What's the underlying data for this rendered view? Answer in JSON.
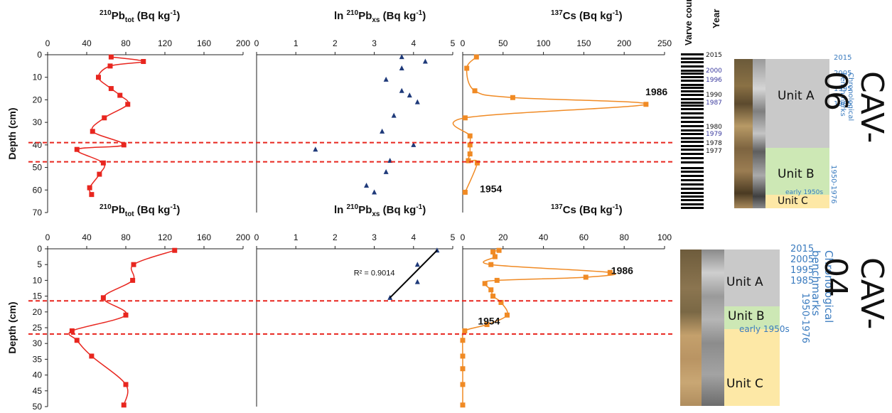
{
  "chart_data": [
    {
      "type": "scatter",
      "core": "CAV-06",
      "panel": "pb_tot",
      "title_sup": "210",
      "title_base": "Pb",
      "title_sub": "tot",
      "title_unit": " (Bq kg-1)",
      "ylabel": "Depth (cm)",
      "xlim": [
        0,
        200
      ],
      "xticks": [
        0,
        40,
        80,
        120,
        160,
        200
      ],
      "ylim": [
        0,
        70
      ],
      "yticks": [
        0,
        10,
        20,
        30,
        40,
        50,
        60,
        70
      ],
      "color": "#e8261f",
      "x": [
        65,
        98,
        64,
        52,
        65,
        74,
        82,
        58,
        46,
        78,
        30,
        57,
        53,
        43,
        45
      ],
      "y": [
        1,
        3,
        5,
        10,
        15,
        18,
        22,
        28,
        34,
        40,
        42,
        48,
        53,
        59,
        62
      ]
    },
    {
      "type": "scatter",
      "core": "CAV-06",
      "panel": "ln_pbxs",
      "title_prefix": "ln ",
      "title_sup": "210",
      "title_base": "Pb",
      "title_sub": "xs",
      "title_unit": " (Bq kg-1)",
      "xlim": [
        0,
        5
      ],
      "xticks": [
        0,
        1,
        2,
        3,
        4,
        5
      ],
      "ylim": [
        0,
        70
      ],
      "color": "#1f3a7a",
      "x": [
        3.7,
        4.3,
        3.7,
        3.3,
        3.7,
        3.9,
        4.1,
        3.5,
        3.2,
        4.0,
        1.5,
        3.4,
        3.3,
        2.8,
        3.0
      ],
      "y": [
        1,
        3,
        6,
        11,
        16,
        18,
        21,
        27,
        34,
        40,
        42,
        47,
        52,
        58,
        61
      ]
    },
    {
      "type": "line",
      "core": "CAV-06",
      "panel": "cs137",
      "title_sup": "137",
      "title_base": "Cs",
      "title_unit": " (Bq kg-1)",
      "xlim": [
        0,
        250
      ],
      "xticks": [
        0,
        50,
        100,
        150,
        200,
        250
      ],
      "ylim": [
        0,
        70
      ],
      "color": "#f08a24",
      "x": [
        17,
        5,
        15,
        62,
        227,
        3,
        9,
        9,
        9,
        7,
        18,
        3
      ],
      "y": [
        1,
        6,
        16,
        19,
        22,
        28,
        36,
        40,
        44,
        47,
        48,
        61
      ],
      "annotations": [
        {
          "text": "1986",
          "x": 240,
          "y": 18
        },
        {
          "text": "1954",
          "x": 35,
          "y": 61
        }
      ]
    },
    {
      "type": "scatter",
      "core": "CAV-04",
      "panel": "pb_tot",
      "title_sup": "210",
      "title_base": "Pb",
      "title_sub": "tot",
      "title_unit": " (Bq kg-1)",
      "ylabel": "Depth (cm)",
      "xlim": [
        0,
        200
      ],
      "xticks": [
        0,
        40,
        80,
        120,
        160,
        200
      ],
      "ylim": [
        0,
        50
      ],
      "yticks": [
        0,
        5,
        10,
        15,
        20,
        25,
        30,
        35,
        40,
        45,
        50
      ],
      "color": "#e8261f",
      "x": [
        130,
        88,
        87,
        57,
        80,
        25,
        30,
        45,
        80,
        78
      ],
      "y": [
        0.5,
        5,
        10,
        15.5,
        21,
        26,
        29,
        34,
        43,
        49.5
      ],
      "annotations": []
    },
    {
      "type": "scatter",
      "core": "CAV-04",
      "panel": "ln_pbxs",
      "title_prefix": "ln ",
      "title_sup": "210",
      "title_base": "Pb",
      "title_sub": "xs",
      "title_unit": " (Bq kg-1)",
      "xlim": [
        0,
        5
      ],
      "xticks": [
        0,
        1,
        2,
        3,
        4,
        5
      ],
      "ylim": [
        0,
        50
      ],
      "color": "#1f3a7a",
      "x": [
        4.6,
        4.1,
        4.1,
        3.4
      ],
      "y": [
        0.5,
        5,
        10.5,
        15.5
      ],
      "trendline": {
        "x": [
          4.6,
          3.4
        ],
        "y": [
          0.5,
          15.5
        ]
      },
      "annotations": [
        {
          "text": "R² = 0.9014",
          "x": 3.0,
          "y": 8.5
        }
      ]
    },
    {
      "type": "line",
      "core": "CAV-04",
      "panel": "cs137",
      "title_sup": "137",
      "title_base": "Cs",
      "title_unit": " (Bq kg-1)",
      "xlim": [
        0,
        100
      ],
      "xticks": [
        0,
        20,
        40,
        60,
        80,
        100
      ],
      "ylim": [
        0,
        50
      ],
      "color": "#f08a24",
      "x": [
        18,
        15,
        16,
        14,
        73,
        61,
        17,
        11,
        14,
        15,
        19,
        22,
        12,
        1,
        0,
        0,
        0,
        0,
        0
      ],
      "y": [
        0.5,
        1,
        2.5,
        5,
        7.5,
        9,
        10,
        11,
        13,
        15,
        17,
        21,
        24,
        26,
        29,
        34,
        38,
        43,
        49.5
      ],
      "annotations": [
        {
          "text": "1986",
          "x": 79,
          "y": 8
        },
        {
          "text": "1954",
          "x": 13,
          "y": 24
        }
      ]
    }
  ],
  "reference_lines": {
    "color": "#e8261f",
    "cav06_depths": [
      39,
      47.5
    ],
    "cav04_depths": [
      16.5,
      27
    ]
  },
  "cav06_side": {
    "header_varve": "Varve count",
    "header_year": "Year",
    "varve_years": [
      "2015",
      "2000",
      "1996",
      "1990",
      "1987",
      "1980",
      "1979",
      "1978",
      "1977"
    ],
    "highlight_years": [
      "2000",
      "1996",
      "1987",
      "1979"
    ],
    "highlight_color": "#3b3b9f",
    "units": [
      "Unit A",
      "Unit B",
      "Unit C"
    ],
    "unit_colors": {
      "a": "#c9c9c9",
      "b": "#cde8b5",
      "c": "#fde8a6"
    },
    "bench_years": [
      "2015",
      "2005",
      "1995",
      "1985"
    ],
    "bench_range": "1950-1976",
    "bench_early": "early 1950s",
    "bench_title": "Chronological benchmarks",
    "bench_color": "#3a7bbf",
    "site": "CAV-06"
  },
  "cav04_side": {
    "units": [
      "Unit A",
      "Unit B",
      "Unit C"
    ],
    "bench_years": [
      "2015",
      "2005",
      "1995",
      "1985"
    ],
    "bench_range": "1950-1976",
    "bench_early": "early 1950s",
    "bench_title": "Chronological benchmarks",
    "site": "CAV-04"
  }
}
